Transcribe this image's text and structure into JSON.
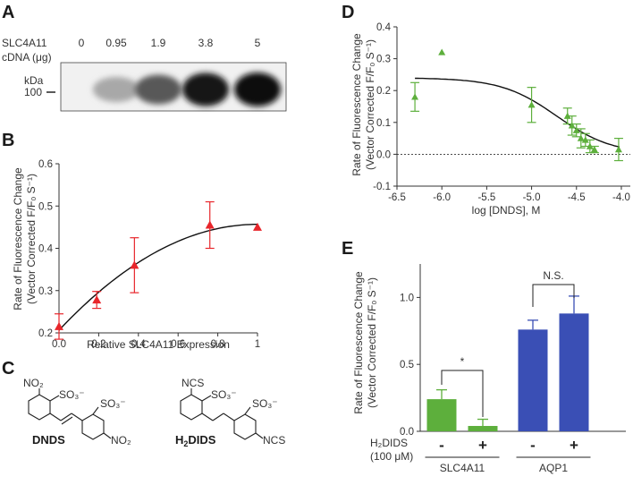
{
  "panels": {
    "A": {
      "letter": "A",
      "row_label_1": "SLC4A11",
      "row_label_2": "cDNA (μg)",
      "lanes": [
        "0",
        "0.95",
        "1.9",
        "3.8",
        "5"
      ],
      "kda_label": "kDa",
      "marker": "100",
      "band_intensity": [
        0.0,
        0.3,
        0.65,
        0.95,
        1.0
      ]
    },
    "B": {
      "letter": "B",
      "chart_data": {
        "type": "scatter",
        "xlabel": "Relative SLC4A11 Expression",
        "ylabel_1": "Rate of Fluorescence Change",
        "ylabel_2": "(Vector Corrected F/F₀ S⁻¹)",
        "xlim": [
          0,
          1
        ],
        "ylim": [
          0.2,
          0.6
        ],
        "xticks": [
          "0.0",
          "0.2",
          "0.4",
          "0.6",
          "0.8",
          "1"
        ],
        "yticks": [
          "0.2",
          "0.3",
          "0.4",
          "0.5",
          "0.6"
        ],
        "points": [
          {
            "x": 0.0,
            "y": 0.215,
            "err": 0.03
          },
          {
            "x": 0.19,
            "y": 0.278,
            "err": 0.02
          },
          {
            "x": 0.38,
            "y": 0.36,
            "err": 0.065
          },
          {
            "x": 0.76,
            "y": 0.455,
            "err": 0.055
          },
          {
            "x": 1.0,
            "y": 0.45,
            "err": 0.0
          }
        ],
        "fit": "curve",
        "color": "#e8262b"
      }
    },
    "C": {
      "letter": "C",
      "compound_1": "DNDS",
      "compound_2_main": "H",
      "compound_2_sub": "2",
      "compound_2_tail": "DIDS",
      "groups": {
        "no2": "NO₂",
        "so3": "SO₃⁻",
        "ncs": "NCS"
      }
    },
    "D": {
      "letter": "D",
      "chart_data": {
        "type": "scatter",
        "xlabel": "log [DNDS], M",
        "ylabel_1": "Rate of Fluorescence Change",
        "ylabel_2": "(Vector Corrected F/F₀ S⁻¹)",
        "xlim": [
          -6.5,
          -3.9
        ],
        "ylim": [
          -0.1,
          0.4
        ],
        "xticks": [
          "-6.5",
          "-6.0",
          "-5.5",
          "-5.0",
          "-4.5",
          "-4.0"
        ],
        "yticks": [
          "-0.1",
          "0.0",
          "0.1",
          "0.2",
          "0.3",
          "0.4"
        ],
        "points": [
          {
            "x": -6.3,
            "y": 0.18,
            "err": 0.045
          },
          {
            "x": -6.0,
            "y": 0.32,
            "err": 0.0
          },
          {
            "x": -5.0,
            "y": 0.155,
            "err": 0.055
          },
          {
            "x": -4.6,
            "y": 0.12,
            "err": 0.025
          },
          {
            "x": -4.55,
            "y": 0.09,
            "err": 0.03
          },
          {
            "x": -4.5,
            "y": 0.075,
            "err": 0.02
          },
          {
            "x": -4.45,
            "y": 0.05,
            "err": 0.03
          },
          {
            "x": -4.4,
            "y": 0.045,
            "err": 0.02
          },
          {
            "x": -4.35,
            "y": 0.025,
            "err": 0.02
          },
          {
            "x": -4.3,
            "y": 0.015,
            "err": 0.01
          },
          {
            "x": -4.03,
            "y": 0.015,
            "err": 0.035
          }
        ],
        "fit": "sigmoid",
        "top": 0.24,
        "bottom": 0.0,
        "logIC50": -4.72,
        "color": "#5daf3c"
      }
    },
    "E": {
      "letter": "E",
      "chart_data": {
        "type": "bar",
        "ylabel_1": "Rate of Fluorescence Change",
        "ylabel_2": "(Vector Corrected F/F₀ S⁻¹)",
        "ylim": [
          0,
          1.25
        ],
        "yticks": [
          "0.0",
          "0.5",
          "1.0"
        ],
        "inhibitor_label_1": "H₂DIDS",
        "inhibitor_label_2": "(100 μM)",
        "bars": [
          {
            "group": "SLC4A11",
            "cond": "-",
            "value": 0.24,
            "err": 0.07,
            "color": "#5daf3c"
          },
          {
            "group": "SLC4A11",
            "cond": "+",
            "value": 0.04,
            "err": 0.05,
            "color": "#5daf3c"
          },
          {
            "group": "AQP1",
            "cond": "-",
            "value": 0.76,
            "err": 0.07,
            "color": "#3a4fb5"
          },
          {
            "group": "AQP1",
            "cond": "+",
            "value": 0.88,
            "err": 0.13,
            "color": "#3a4fb5"
          }
        ],
        "groups": [
          "SLC4A11",
          "AQP1"
        ],
        "sig_1": "*",
        "sig_2": "N.S."
      }
    }
  }
}
